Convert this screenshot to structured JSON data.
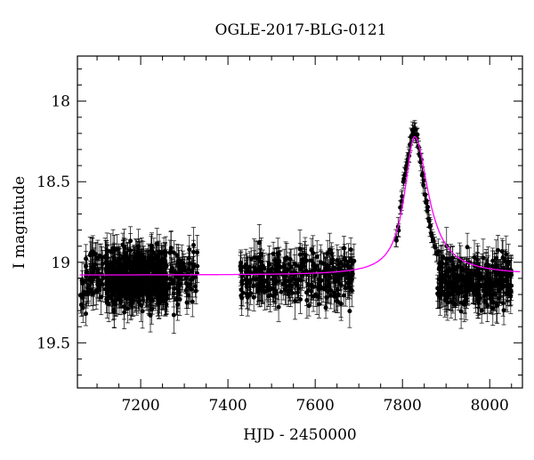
{
  "chart_data": {
    "type": "scatter",
    "title": "OGLE-2017-BLG-0121",
    "xlabel": "HJD - 2450000",
    "ylabel": "I magnitude",
    "xlim": [
      7055,
      8075
    ],
    "ylim": [
      19.78,
      17.72
    ],
    "y_inverted": true,
    "x_ticks": [
      7200,
      7400,
      7600,
      7800,
      8000
    ],
    "x_tick_labels": [
      "7200",
      "7400",
      "7600",
      "7800",
      "8000"
    ],
    "y_ticks": [
      18,
      18.5,
      19,
      19.5
    ],
    "y_tick_labels": [
      "18",
      "18.5",
      "19",
      "19.5"
    ],
    "grid": false,
    "legend": "none",
    "colors": {
      "data": "#000000",
      "model": "#ff00ff"
    },
    "series": [
      {
        "type": "line",
        "model": {
          "baseline": 19.08,
          "peak_mag": 18.22,
          "peak_time": 7828,
          "rise_halfwidth": 28,
          "decay_halfwidth": 38
        }
      },
      {
        "type": "scatter_errorbars",
        "typical_error": 0.09,
        "observing_seasons": [
          {
            "x_range": [
              7062,
              7330
            ],
            "mean": 19.09,
            "scatter": 0.12
          },
          {
            "x_range": [
              7428,
              7690
            ],
            "mean": 19.09,
            "scatter": 0.11
          },
          {
            "x_range": [
              7880,
              8050
            ],
            "mean": 19.12,
            "scatter": 0.11
          }
        ],
        "event_points": [
          [
            7785,
            18.85
          ],
          [
            7790,
            18.78
          ],
          [
            7795,
            18.66
          ],
          [
            7798,
            18.62
          ],
          [
            7802,
            18.5
          ],
          [
            7805,
            18.46
          ],
          [
            7808,
            18.42
          ],
          [
            7811,
            18.38
          ],
          [
            7814,
            18.33
          ],
          [
            7817,
            18.27
          ],
          [
            7820,
            18.22
          ],
          [
            7823,
            18.18
          ],
          [
            7826,
            18.2
          ],
          [
            7828,
            18.17
          ],
          [
            7830,
            18.21
          ],
          [
            7833,
            18.23
          ],
          [
            7836,
            18.28
          ],
          [
            7839,
            18.33
          ],
          [
            7842,
            18.38
          ],
          [
            7845,
            18.46
          ],
          [
            7848,
            18.52
          ],
          [
            7851,
            18.58
          ],
          [
            7854,
            18.63
          ],
          [
            7857,
            18.68
          ],
          [
            7860,
            18.73
          ],
          [
            7863,
            18.78
          ],
          [
            7866,
            18.82
          ],
          [
            7870,
            18.86
          ],
          [
            7874,
            18.9
          ],
          [
            7878,
            18.94
          ]
        ]
      }
    ]
  }
}
